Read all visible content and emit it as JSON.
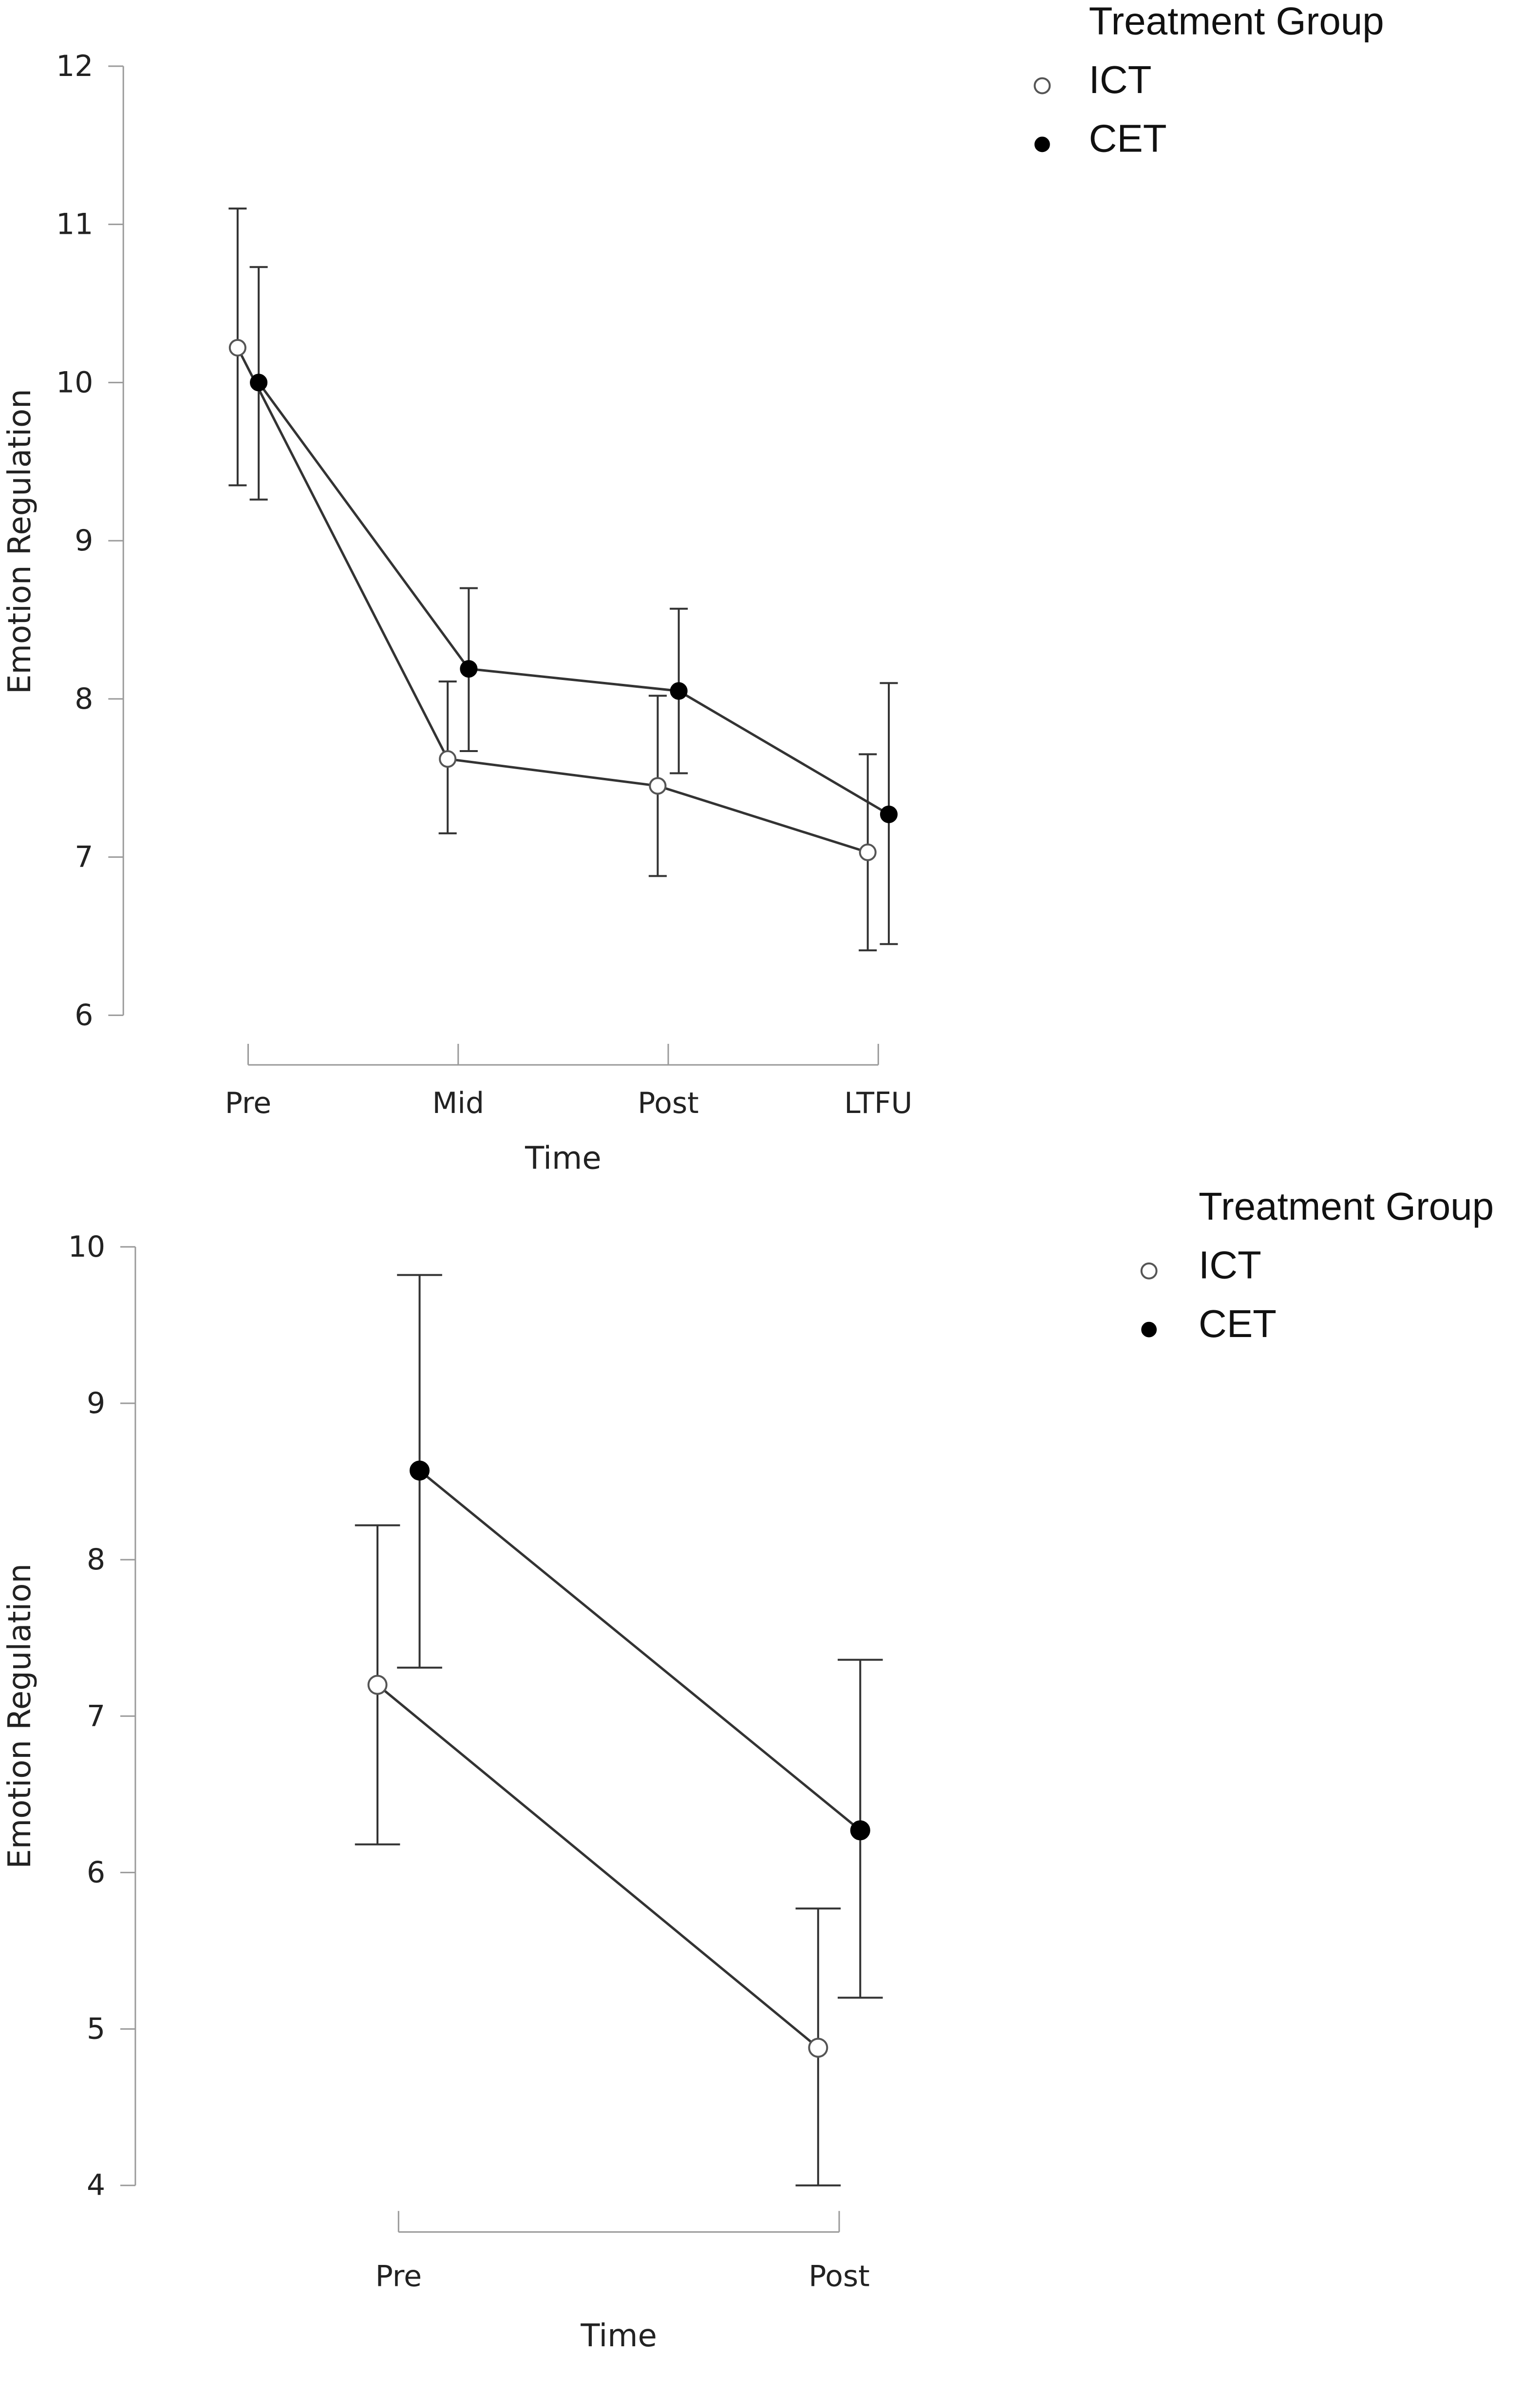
{
  "chart_data": [
    {
      "type": "line",
      "xlabel": "Time",
      "ylabel": "Emotion Regulation",
      "categories": [
        "Pre",
        "Mid",
        "Post",
        "LTFU"
      ],
      "ylim": [
        6,
        12
      ],
      "yticks": [
        6,
        7,
        8,
        9,
        10,
        11,
        12
      ],
      "legend": {
        "title": "Treatment Group",
        "position": "top-right"
      },
      "series": [
        {
          "name": "ICT",
          "marker": "open-circle",
          "values": [
            10.22,
            7.62,
            7.45,
            7.03
          ],
          "lower": [
            9.35,
            7.15,
            6.88,
            6.41
          ],
          "upper": [
            11.1,
            8.11,
            8.02,
            7.65
          ]
        },
        {
          "name": "CET",
          "marker": "filled-circle",
          "values": [
            10.0,
            8.19,
            8.05,
            7.27
          ],
          "lower": [
            9.26,
            7.67,
            7.53,
            6.45
          ],
          "upper": [
            10.73,
            8.7,
            8.57,
            8.1
          ]
        }
      ]
    },
    {
      "type": "line",
      "xlabel": "Time",
      "ylabel": "Emotion Regulation",
      "categories": [
        "Pre",
        "Post"
      ],
      "ylim": [
        4,
        10
      ],
      "yticks": [
        4,
        5,
        6,
        7,
        8,
        9,
        10
      ],
      "legend": {
        "title": "Treatment Group",
        "position": "top-right"
      },
      "series": [
        {
          "name": "ICT",
          "marker": "open-circle",
          "values": [
            7.2,
            4.88
          ],
          "lower": [
            6.18,
            4.0
          ],
          "upper": [
            8.22,
            5.77
          ]
        },
        {
          "name": "CET",
          "marker": "filled-circle",
          "values": [
            8.57,
            6.27
          ],
          "lower": [
            7.31,
            5.2
          ],
          "upper": [
            9.82,
            7.36
          ]
        }
      ]
    }
  ]
}
